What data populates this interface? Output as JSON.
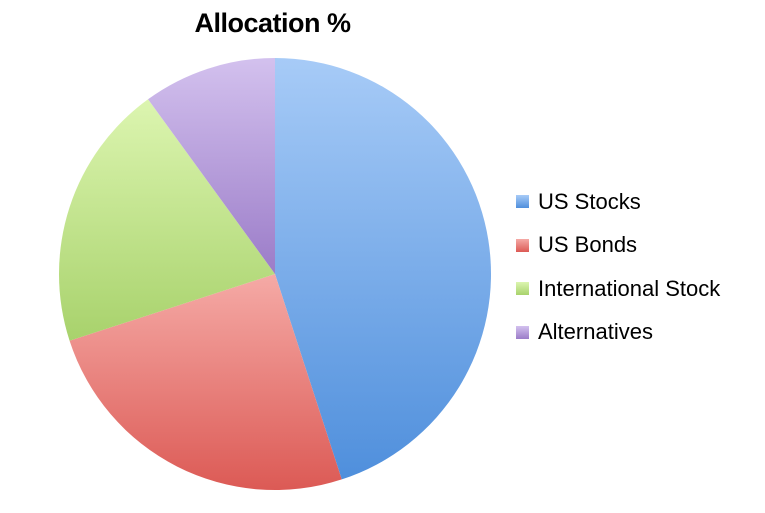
{
  "chart_data": {
    "type": "pie",
    "title": "Allocation %",
    "slices": [
      {
        "label": "US Stocks",
        "value": 45,
        "color": "#6fa6e8",
        "color_light": "#a7cbf7",
        "color_dark": "#4f8fdc"
      },
      {
        "label": "US Bonds",
        "value": 25,
        "color": "#ea7874",
        "color_light": "#f5aaa6",
        "color_dark": "#dc5a55"
      },
      {
        "label": "International Stock",
        "value": 20,
        "color": "#c3e58e",
        "color_light": "#dcf5b0",
        "color_dark": "#a8d26c"
      },
      {
        "label": "Alternatives",
        "value": 10,
        "color": "#b69ad9",
        "color_light": "#d3c1ee",
        "color_dark": "#9b7cc8"
      }
    ],
    "legend_position": "right",
    "start_angle": "top",
    "direction": "clockwise"
  }
}
